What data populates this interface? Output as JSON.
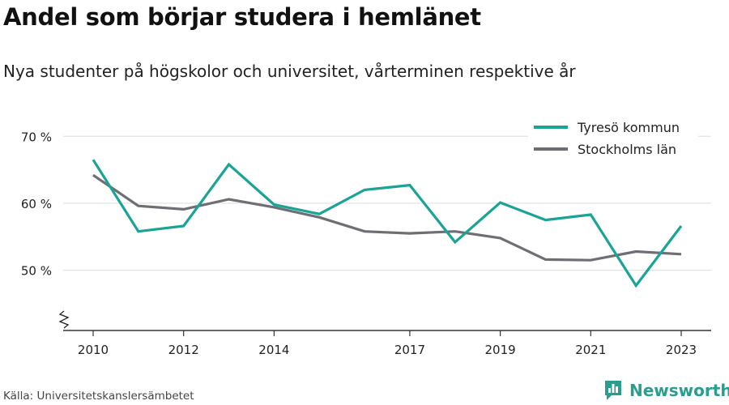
{
  "header": {
    "title": "Andel som börjar studera i hemlänet",
    "subtitle": "Nya studenter på högskolor och universitet, vårterminen respektive år"
  },
  "footer": {
    "source": "Källa: Universitetskanslersämbetet",
    "brand": "Newsworthy"
  },
  "colors": {
    "tyreso": "#1aa396",
    "stockholm": "#6e6e75",
    "grid": "#dddddd",
    "axis": "#333333",
    "brand": "#2a9d8f"
  },
  "icons": {
    "brand": "bar-chart-logo-icon",
    "axis_break": "axis-break-zigzag-icon"
  },
  "chart_data": {
    "type": "line",
    "x": [
      2010,
      2011,
      2012,
      2013,
      2014,
      2015,
      2016,
      2017,
      2018,
      2019,
      2020,
      2021,
      2022,
      2023
    ],
    "xticks": [
      "2010",
      "2012",
      "2014",
      "2017",
      "2019",
      "2021",
      "2023"
    ],
    "ylim": [
      41,
      71
    ],
    "yticks": [
      50,
      60,
      70
    ],
    "ytick_labels": [
      "50 %",
      "60 %",
      "70 %"
    ],
    "axis_break": true,
    "grid": true,
    "legend_position": "top-right",
    "series": [
      {
        "name": "Tyresö kommun",
        "color": "#1aa396",
        "values": [
          66.5,
          55.8,
          56.6,
          65.8,
          59.8,
          58.4,
          62.0,
          62.7,
          54.2,
          60.1,
          57.5,
          58.3,
          47.7,
          56.6
        ]
      },
      {
        "name": "Stockholms län",
        "color": "#6e6e75",
        "values": [
          64.2,
          59.6,
          59.1,
          60.6,
          59.4,
          57.9,
          55.8,
          55.5,
          55.8,
          54.8,
          51.6,
          51.5,
          52.8,
          52.4
        ]
      }
    ]
  }
}
